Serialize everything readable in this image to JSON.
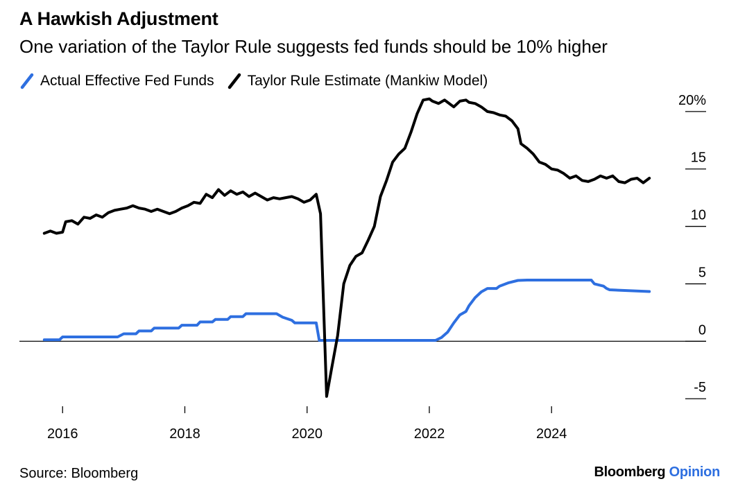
{
  "colors": {
    "actual": "#2e6fe0",
    "taylor": "#000000",
    "axis": "#000000"
  },
  "chart_data": {
    "type": "line",
    "title": "A Hawkish Adjustment",
    "subtitle": "One variation of the Taylor Rule suggests fed funds should be 10% higher",
    "xlabel": "",
    "ylabel": "",
    "xlim": [
      2015.6,
      2025.7
    ],
    "ylim": [
      -6.5,
      21.5
    ],
    "x_ticks": [
      2016,
      2018,
      2020,
      2022,
      2024
    ],
    "x_tick_labels": [
      "2016",
      "2018",
      "2020",
      "2022",
      "2024"
    ],
    "y_ticks": [
      20,
      15,
      10,
      5,
      0,
      -5
    ],
    "y_tick_labels": [
      "20%",
      "15",
      "10",
      "5",
      "0",
      "-5"
    ],
    "legend": [
      "Actual Effective Fed Funds",
      "Taylor Rule Estimate (Mankiw Model)"
    ],
    "series": [
      {
        "name": "Actual Effective Fed Funds",
        "color": "#2e6fe0",
        "points": [
          [
            2015.7,
            0.13
          ],
          [
            2015.95,
            0.13
          ],
          [
            2016.0,
            0.38
          ],
          [
            2016.9,
            0.38
          ],
          [
            2017.0,
            0.65
          ],
          [
            2017.2,
            0.65
          ],
          [
            2017.25,
            0.9
          ],
          [
            2017.45,
            0.9
          ],
          [
            2017.5,
            1.15
          ],
          [
            2017.9,
            1.15
          ],
          [
            2017.95,
            1.4
          ],
          [
            2018.2,
            1.4
          ],
          [
            2018.25,
            1.68
          ],
          [
            2018.45,
            1.68
          ],
          [
            2018.5,
            1.9
          ],
          [
            2018.7,
            1.9
          ],
          [
            2018.75,
            2.15
          ],
          [
            2018.95,
            2.15
          ],
          [
            2019.0,
            2.4
          ],
          [
            2019.5,
            2.4
          ],
          [
            2019.6,
            2.1
          ],
          [
            2019.75,
            1.83
          ],
          [
            2019.8,
            1.6
          ],
          [
            2020.15,
            1.6
          ],
          [
            2020.2,
            0.08
          ],
          [
            2022.1,
            0.08
          ],
          [
            2022.2,
            0.33
          ],
          [
            2022.3,
            0.8
          ],
          [
            2022.4,
            1.6
          ],
          [
            2022.5,
            2.3
          ],
          [
            2022.6,
            2.6
          ],
          [
            2022.65,
            3.1
          ],
          [
            2022.75,
            3.8
          ],
          [
            2022.85,
            4.3
          ],
          [
            2022.95,
            4.6
          ],
          [
            2023.1,
            4.6
          ],
          [
            2023.15,
            4.8
          ],
          [
            2023.3,
            5.1
          ],
          [
            2023.45,
            5.3
          ],
          [
            2023.6,
            5.33
          ],
          [
            2024.65,
            5.33
          ],
          [
            2024.7,
            5.0
          ],
          [
            2024.85,
            4.8
          ],
          [
            2024.9,
            4.6
          ],
          [
            2024.95,
            4.48
          ],
          [
            2025.6,
            4.33
          ]
        ]
      },
      {
        "name": "Taylor Rule Estimate (Mankiw Model)",
        "color": "#000000",
        "points": [
          [
            2015.7,
            9.4
          ],
          [
            2015.8,
            9.6
          ],
          [
            2015.9,
            9.4
          ],
          [
            2016.0,
            9.5
          ],
          [
            2016.05,
            10.4
          ],
          [
            2016.15,
            10.5
          ],
          [
            2016.25,
            10.2
          ],
          [
            2016.35,
            10.8
          ],
          [
            2016.45,
            10.7
          ],
          [
            2016.55,
            11.0
          ],
          [
            2016.65,
            10.8
          ],
          [
            2016.75,
            11.2
          ],
          [
            2016.85,
            11.4
          ],
          [
            2016.95,
            11.5
          ],
          [
            2017.05,
            11.6
          ],
          [
            2017.15,
            11.8
          ],
          [
            2017.25,
            11.6
          ],
          [
            2017.35,
            11.5
          ],
          [
            2017.45,
            11.3
          ],
          [
            2017.55,
            11.5
          ],
          [
            2017.65,
            11.3
          ],
          [
            2017.75,
            11.1
          ],
          [
            2017.85,
            11.3
          ],
          [
            2017.95,
            11.6
          ],
          [
            2018.05,
            11.8
          ],
          [
            2018.15,
            12.1
          ],
          [
            2018.25,
            12.0
          ],
          [
            2018.35,
            12.8
          ],
          [
            2018.45,
            12.5
          ],
          [
            2018.55,
            13.2
          ],
          [
            2018.65,
            12.7
          ],
          [
            2018.75,
            13.1
          ],
          [
            2018.85,
            12.8
          ],
          [
            2018.95,
            13.0
          ],
          [
            2019.05,
            12.6
          ],
          [
            2019.15,
            12.9
          ],
          [
            2019.25,
            12.6
          ],
          [
            2019.35,
            12.3
          ],
          [
            2019.45,
            12.5
          ],
          [
            2019.55,
            12.4
          ],
          [
            2019.65,
            12.5
          ],
          [
            2019.75,
            12.6
          ],
          [
            2019.85,
            12.4
          ],
          [
            2019.95,
            12.1
          ],
          [
            2020.05,
            12.3
          ],
          [
            2020.15,
            12.8
          ],
          [
            2020.22,
            11.1
          ],
          [
            2020.32,
            -4.8
          ],
          [
            2020.4,
            -2.4
          ],
          [
            2020.5,
            0.5
          ],
          [
            2020.6,
            5.0
          ],
          [
            2020.7,
            6.6
          ],
          [
            2020.8,
            7.4
          ],
          [
            2020.9,
            7.7
          ],
          [
            2021.0,
            8.8
          ],
          [
            2021.1,
            10.0
          ],
          [
            2021.2,
            12.6
          ],
          [
            2021.3,
            14.0
          ],
          [
            2021.4,
            15.6
          ],
          [
            2021.5,
            16.3
          ],
          [
            2021.6,
            16.8
          ],
          [
            2021.7,
            18.2
          ],
          [
            2021.8,
            19.8
          ],
          [
            2021.9,
            21.0
          ],
          [
            2022.0,
            21.1
          ],
          [
            2022.05,
            20.9
          ],
          [
            2022.15,
            20.7
          ],
          [
            2022.25,
            21.0
          ],
          [
            2022.3,
            20.8
          ],
          [
            2022.4,
            20.4
          ],
          [
            2022.5,
            20.9
          ],
          [
            2022.6,
            21.0
          ],
          [
            2022.65,
            20.8
          ],
          [
            2022.75,
            20.7
          ],
          [
            2022.85,
            20.4
          ],
          [
            2022.95,
            20.0
          ],
          [
            2023.05,
            19.9
          ],
          [
            2023.15,
            19.7
          ],
          [
            2023.25,
            19.6
          ],
          [
            2023.35,
            19.2
          ],
          [
            2023.45,
            18.5
          ],
          [
            2023.5,
            17.2
          ],
          [
            2023.6,
            16.8
          ],
          [
            2023.7,
            16.3
          ],
          [
            2023.8,
            15.6
          ],
          [
            2023.9,
            15.4
          ],
          [
            2024.0,
            15.0
          ],
          [
            2024.1,
            14.9
          ],
          [
            2024.2,
            14.6
          ],
          [
            2024.3,
            14.2
          ],
          [
            2024.4,
            14.4
          ],
          [
            2024.5,
            14.0
          ],
          [
            2024.6,
            13.9
          ],
          [
            2024.7,
            14.1
          ],
          [
            2024.8,
            14.4
          ],
          [
            2024.9,
            14.2
          ],
          [
            2025.0,
            14.4
          ],
          [
            2025.1,
            13.9
          ],
          [
            2025.2,
            13.8
          ],
          [
            2025.3,
            14.1
          ],
          [
            2025.4,
            14.2
          ],
          [
            2025.5,
            13.8
          ],
          [
            2025.6,
            14.2
          ]
        ]
      }
    ]
  },
  "footer": {
    "source": "Source: Bloomberg",
    "brand_main": "Bloomberg",
    "brand_sub": "Opinion"
  }
}
